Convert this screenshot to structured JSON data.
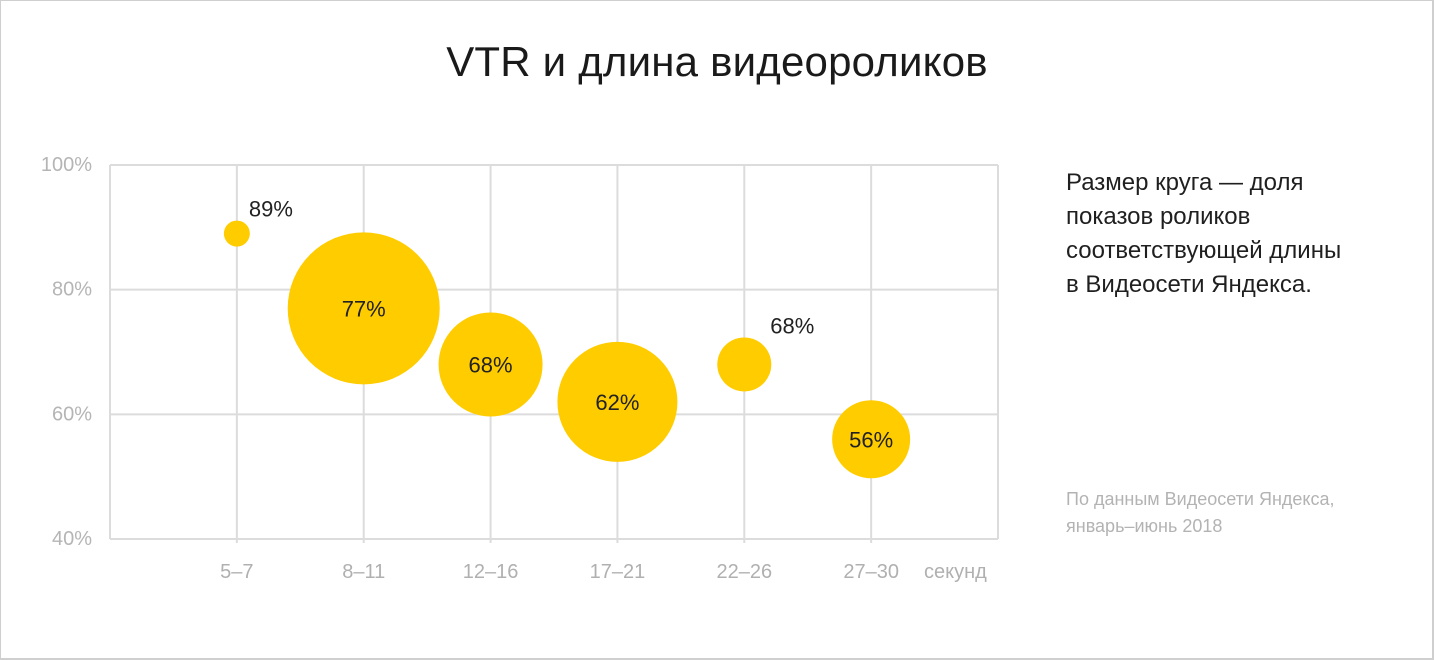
{
  "title": "VTR и длина видеороликов",
  "legend_note": "Размер круга — доля показов роликов соответствующей длины в Видеосети Яндекса.",
  "legend_lines": [
    "Размер круга — доля",
    "показов роликов",
    "соответствующей длины",
    "в Видеосети Яндекса."
  ],
  "source_lines": [
    "По данным Видеосети Яндекса,",
    "январь–июнь 2018"
  ],
  "x_unit_label": "секунд",
  "colors": {
    "bubble": "#FFCC00",
    "grid": "#dcdcdc",
    "tick_text": "#b0b0b0",
    "label_text": "#222222"
  },
  "chart_data": {
    "type": "scatter",
    "subtype": "bubble",
    "title": "VTR и длина видеороликов",
    "xlabel": "секунд",
    "ylabel": "VTR",
    "categories": [
      "5–7",
      "8–11",
      "12–16",
      "17–21",
      "22–26",
      "27–30"
    ],
    "y_ticks": [
      "100%",
      "80%",
      "60%",
      "40%"
    ],
    "ylim": [
      40,
      100
    ],
    "grid": true,
    "series": [
      {
        "name": "VTR",
        "values": [
          89,
          77,
          68,
          62,
          68,
          56
        ],
        "labels": [
          "89%",
          "77%",
          "68%",
          "62%",
          "68%",
          "56%"
        ],
        "bubble_radius_px": [
          13,
          76,
          52,
          60,
          27,
          39
        ]
      }
    ],
    "size_meaning": "Размер круга — доля показов роликов соответствующей длины в Видеосети Яндекса.",
    "annotations": [
      "По данным Видеосети Яндекса, январь–июнь 2018"
    ],
    "legend_position": "right"
  }
}
